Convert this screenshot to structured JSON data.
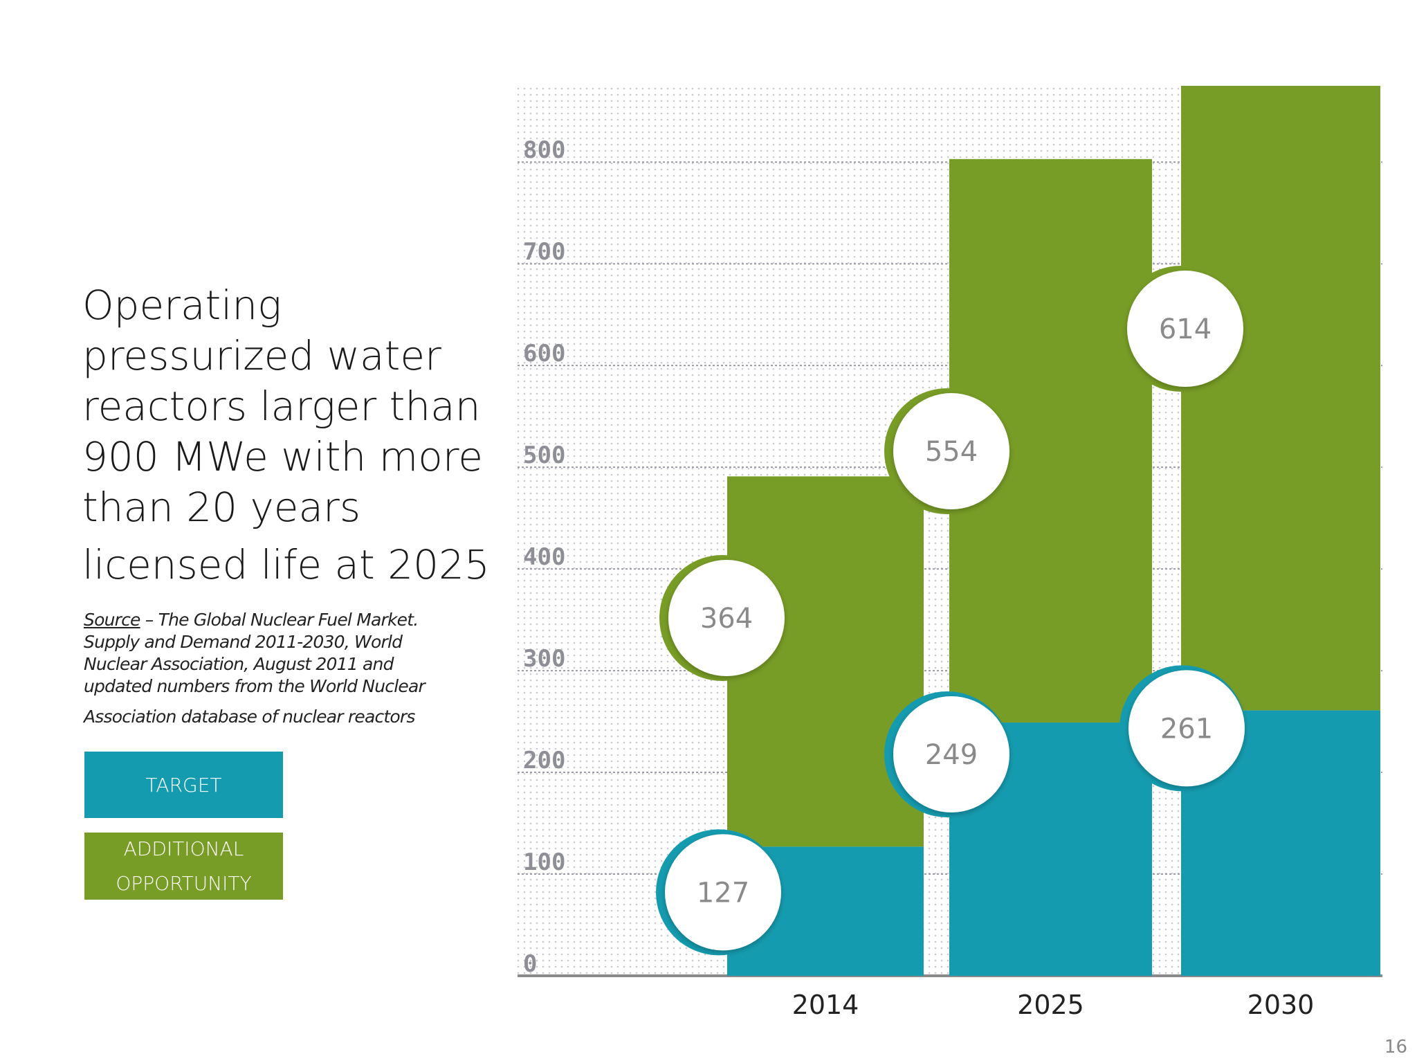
{
  "title": {
    "main": "Operating\npressurized water\nreactors larger than\n900 MWe with more\nthan 20 years",
    "last_line": "licensed life at 2025"
  },
  "source": {
    "label": "Source",
    "text": " – The Global Nuclear Fuel Market. Supply and Demand 2011-2030, World Nuclear Association, August 2011 and updated numbers from the World Nuclear",
    "last_line": "Association database of nuclear reactors"
  },
  "legend": {
    "target": "TARGET",
    "additional": "ADDITIONAL\nOPPORTUNITY"
  },
  "colors": {
    "target": "#159baf",
    "additional": "#789d26"
  },
  "page_number": "16",
  "chart_data": {
    "type": "bar",
    "stacked": true,
    "categories": [
      "2014",
      "2025",
      "2030"
    ],
    "series": [
      {
        "name": "TARGET",
        "values": [
          127,
          249,
          261
        ],
        "color": "#159baf"
      },
      {
        "name": "ADDITIONAL OPPORTUNITY",
        "values": [
          364,
          554,
          614
        ],
        "color": "#789d26"
      }
    ],
    "y_ticks": [
      "0",
      "100",
      "200",
      "300",
      "400",
      "500",
      "600",
      "700",
      "800"
    ],
    "ylim": [
      0,
      875
    ],
    "grid": true,
    "legend_position": "left"
  }
}
